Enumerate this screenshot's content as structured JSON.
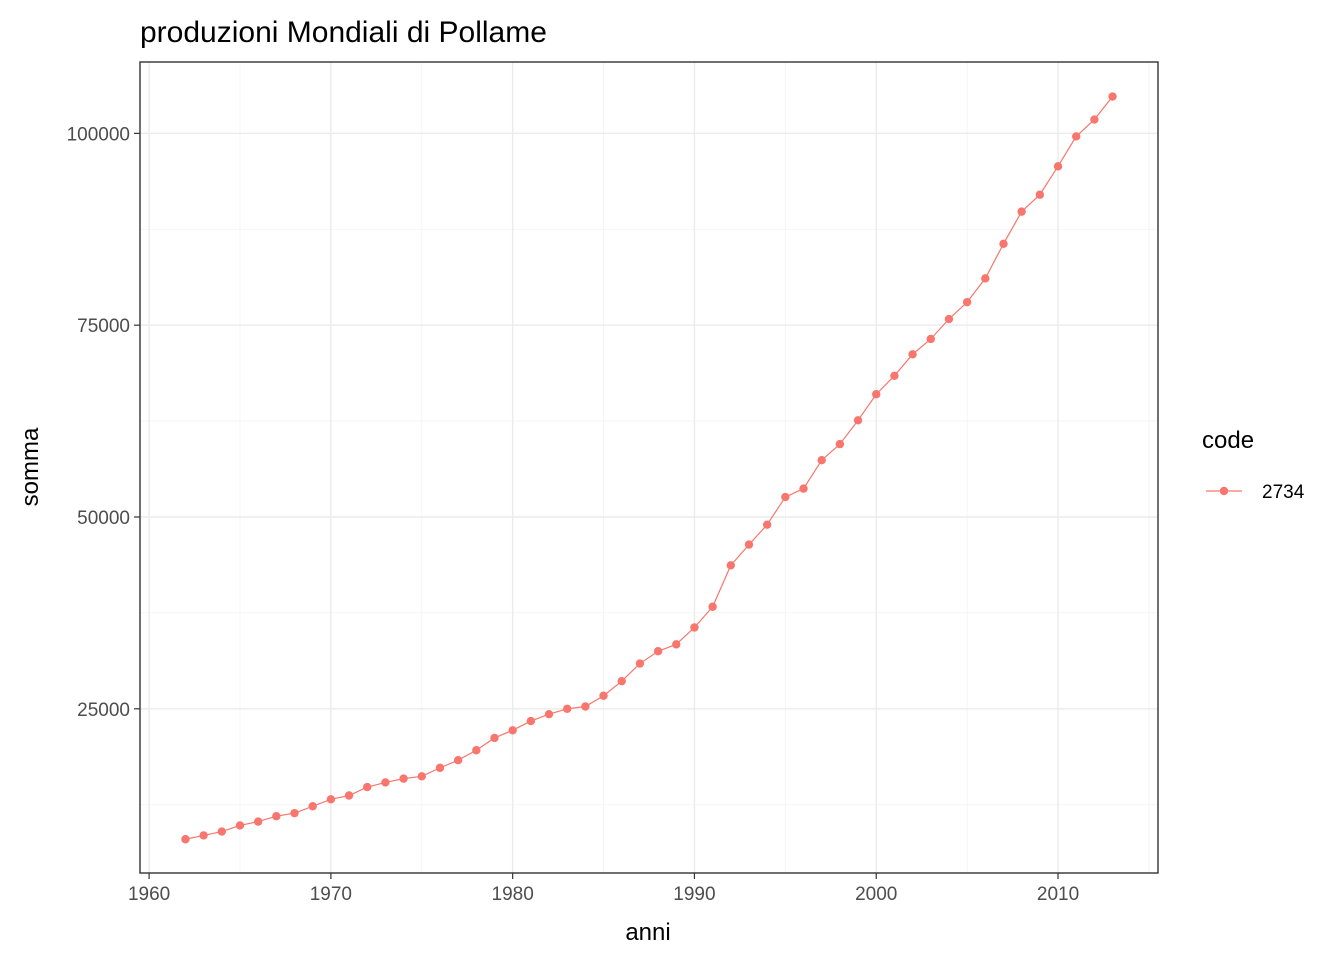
{
  "chart_data": {
    "type": "line",
    "title": "produzioni Mondiali di Pollame",
    "xlabel": "anni",
    "ylabel": "somma",
    "xlim": [
      1959.5,
      2015.5
    ],
    "ylim": [
      3600,
      109300
    ],
    "x_ticks": [
      1960,
      1970,
      1980,
      1990,
      2000,
      2010
    ],
    "y_ticks": [
      25000,
      50000,
      75000,
      100000
    ],
    "grid": true,
    "legend": {
      "title": "code",
      "position": "right"
    },
    "series": [
      {
        "name": "2734",
        "color": "#f8766d",
        "x": [
          1962,
          1963,
          1964,
          1965,
          1966,
          1967,
          1968,
          1969,
          1970,
          1971,
          1972,
          1973,
          1974,
          1975,
          1976,
          1977,
          1978,
          1979,
          1980,
          1981,
          1982,
          1983,
          1984,
          1985,
          1986,
          1987,
          1988,
          1989,
          1990,
          1991,
          1992,
          1993,
          1994,
          1995,
          1996,
          1997,
          1998,
          1999,
          2000,
          2001,
          2002,
          2003,
          2004,
          2005,
          2006,
          2007,
          2008,
          2009,
          2010,
          2011,
          2012,
          2013
        ],
        "y": [
          8000,
          8500,
          9000,
          9800,
          10300,
          11000,
          11400,
          12300,
          13200,
          13700,
          14800,
          15400,
          15900,
          16200,
          17300,
          18300,
          19600,
          21200,
          22200,
          23400,
          24300,
          25000,
          25300,
          26700,
          28600,
          30900,
          32500,
          33400,
          35600,
          38300,
          43700,
          46400,
          49000,
          52600,
          53700,
          57400,
          59500,
          62600,
          66000,
          68400,
          71200,
          73200,
          75800,
          78000,
          81100,
          85600,
          89800,
          92000,
          95700,
          99600,
          101800,
          104800
        ]
      }
    ]
  }
}
